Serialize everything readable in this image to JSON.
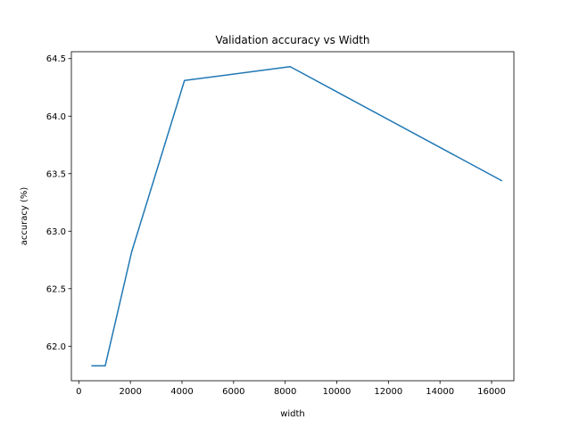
{
  "chart_data": {
    "type": "line",
    "title": "Validation accuracy vs Width",
    "xlabel": "width",
    "ylabel": "accuracy (%)",
    "xlim": [
      -288,
      16864
    ],
    "ylim": [
      61.7,
      64.56
    ],
    "xticks": [
      0,
      2000,
      4000,
      6000,
      8000,
      10000,
      12000,
      14000,
      16000
    ],
    "yticks": [
      62.0,
      62.5,
      63.0,
      63.5,
      64.0,
      64.5
    ],
    "grid": false,
    "series": [
      {
        "color": "#1f77b4",
        "x": [
          512,
          1024,
          2048,
          4096,
          8192,
          16384
        ],
        "y": [
          61.83,
          61.83,
          62.82,
          64.31,
          64.43,
          63.44
        ]
      }
    ]
  }
}
